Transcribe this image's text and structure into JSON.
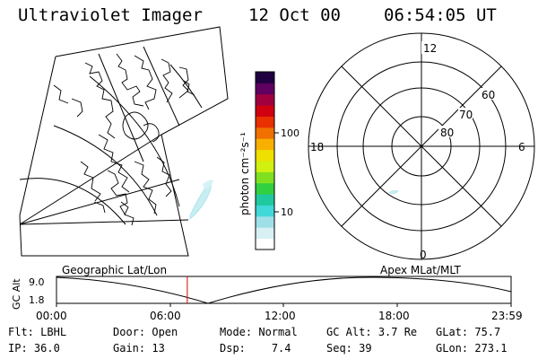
{
  "header": {
    "title": "Ultraviolet Imager",
    "date": "12 Oct 00",
    "time": "06:54:05 UT"
  },
  "colorbar": {
    "label": "photon cm⁻²s⁻¹",
    "ticks": [
      "100",
      "10"
    ],
    "colors": [
      "#ffffff",
      "#d8f0f4",
      "#9fe0e8",
      "#40d8d8",
      "#20c8a0",
      "#30d040",
      "#80e020",
      "#d0f010",
      "#f0e000",
      "#f8b000",
      "#f07000",
      "#e83000",
      "#d00010",
      "#a00040",
      "#600060",
      "#200040"
    ]
  },
  "map_left": {
    "label": "Geographic Lat/Lon"
  },
  "map_right": {
    "label": "Apex MLat/MLT",
    "mlt_labels": {
      "top": "12",
      "left": "18",
      "right": "6",
      "bottom": "0"
    },
    "lat_labels": [
      "60",
      "70",
      "80"
    ]
  },
  "altitude_plot": {
    "ylabel": "GC Alt",
    "yticks": [
      "9.0",
      "1.8"
    ],
    "xticks": [
      "00:00",
      "06:00",
      "12:00",
      "18:00",
      "23:59"
    ],
    "marker_time": "06:54"
  },
  "info": {
    "row1": [
      {
        "label": "Flt:",
        "value": "LBHL"
      },
      {
        "label": "Door:",
        "value": "Open"
      },
      {
        "label": "Mode:",
        "value": "Normal"
      },
      {
        "label": "GC Alt:",
        "value": "3.7 Re"
      },
      {
        "label": "GLat:",
        "value": "75.7"
      }
    ],
    "row2": [
      {
        "label": "IP:",
        "value": "36.0"
      },
      {
        "label": "Gain:",
        "value": "13"
      },
      {
        "label": "Dsp:",
        "value": "7.4"
      },
      {
        "label": "Seq:",
        "value": "39"
      },
      {
        "label": "GLon:",
        "value": "273.1"
      }
    ]
  }
}
